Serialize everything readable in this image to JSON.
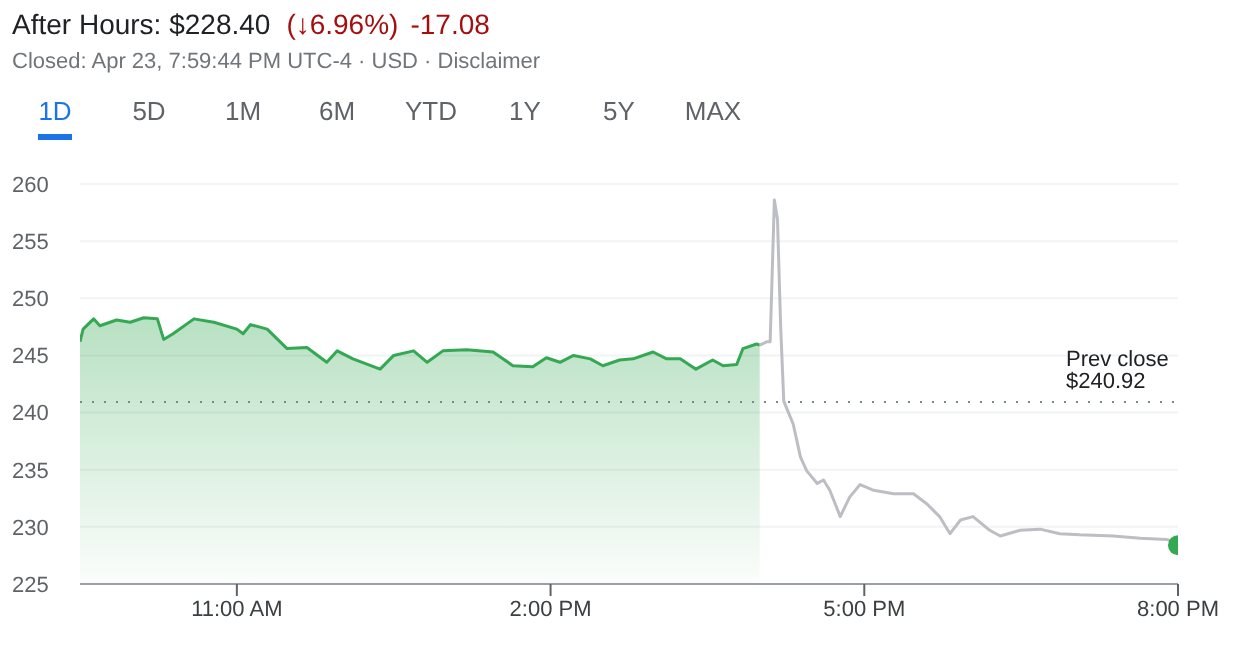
{
  "chart_data": {
    "type": "line",
    "title": "After Hours: $228.40",
    "subtitle": "Closed: Apr 23, 7:59:44 PM UTC-4 · USD · Disclaimer",
    "annotations": [
      "(↓6.96%)",
      "-17.08",
      "1D",
      "5D",
      "1M",
      "6M",
      "YTD",
      "1Y",
      "5Y",
      "MAX"
    ],
    "series": [
      {
        "type": "area",
        "color": "#34a853",
        "x": [
          9.5,
          9.53,
          9.63,
          9.69,
          9.85,
          9.98,
          10.11,
          10.24,
          10.3,
          10.39,
          10.59,
          10.78,
          11,
          11.06,
          11.13,
          11.29,
          11.48,
          11.67,
          11.86,
          11.96,
          12.11,
          12.37,
          12.5,
          12.69,
          12.82,
          12.97,
          13.2,
          13.45,
          13.64,
          13.83,
          13.96,
          14.09,
          14.22,
          14.38,
          14.5,
          14.66,
          14.79,
          14.98,
          15.11,
          15.24,
          15.39,
          15.55,
          15.65,
          15.78,
          15.84,
          15.97,
          16
        ],
        "values": [
          246.2,
          247.3,
          248.2,
          247.6,
          248.1,
          247.9,
          248.3,
          248.2,
          246.4,
          246.9,
          248.2,
          247.9,
          247.3,
          246.9,
          247.7,
          247.3,
          245.6,
          245.7,
          244.4,
          245.4,
          244.7,
          243.8,
          245,
          245.4,
          244.4,
          245.4,
          245.5,
          245.3,
          244.1,
          244,
          244.8,
          244.4,
          245,
          244.7,
          244.1,
          244.6,
          244.7,
          245.3,
          244.7,
          244.7,
          243.8,
          244.6,
          244.1,
          244.2,
          245.6,
          246,
          245.9
        ]
      },
      {
        "color": "#bdbdc4",
        "x": [
          16,
          16.07,
          16.1,
          16.14,
          16.17,
          16.2,
          16.23,
          16.27,
          16.32,
          16.39,
          16.45,
          16.55,
          16.61,
          16.67,
          16.77,
          16.86,
          16.96,
          17.09,
          17.28,
          17.47,
          17.6,
          17.72,
          17.82,
          17.92,
          18.04,
          18.2,
          18.3,
          18.49,
          18.68,
          18.87,
          19.06,
          19.38,
          19.64,
          19.89,
          20
        ],
        "values": [
          245.9,
          246.2,
          246.2,
          258.6,
          256.9,
          247.6,
          241,
          240.1,
          239,
          236.1,
          234.9,
          233.8,
          234.1,
          233.2,
          230.9,
          232.6,
          233.7,
          233.2,
          232.9,
          232.9,
          232,
          230.9,
          229.4,
          230.6,
          230.9,
          229.7,
          229.2,
          229.7,
          229.8,
          229.4,
          229.3,
          229.2,
          229,
          228.9,
          228.6
        ]
      },
      {
        "type": "scatter",
        "color": "#34a853",
        "x": [
          20
        ],
        "values": [
          228.4
        ]
      }
    ],
    "xlim": [
      9.5,
      20
    ],
    "xticks": [
      {
        "value": 11,
        "label": "11:00 AM"
      },
      {
        "value": 14,
        "label": "2:00 PM"
      },
      {
        "value": 17,
        "label": "5:00 PM"
      },
      {
        "value": 20,
        "label": "8:00 PM"
      }
    ],
    "ylim": [
      225,
      260
    ],
    "yticks": [
      225,
      230,
      235,
      240,
      245,
      250,
      255,
      260
    ],
    "grid": "y",
    "ref_lines": [
      {
        "axis": "y",
        "value": 240.92,
        "label": "Prev close $240.92",
        "color": "#80868b",
        "line_style": "dotted"
      }
    ]
  }
}
